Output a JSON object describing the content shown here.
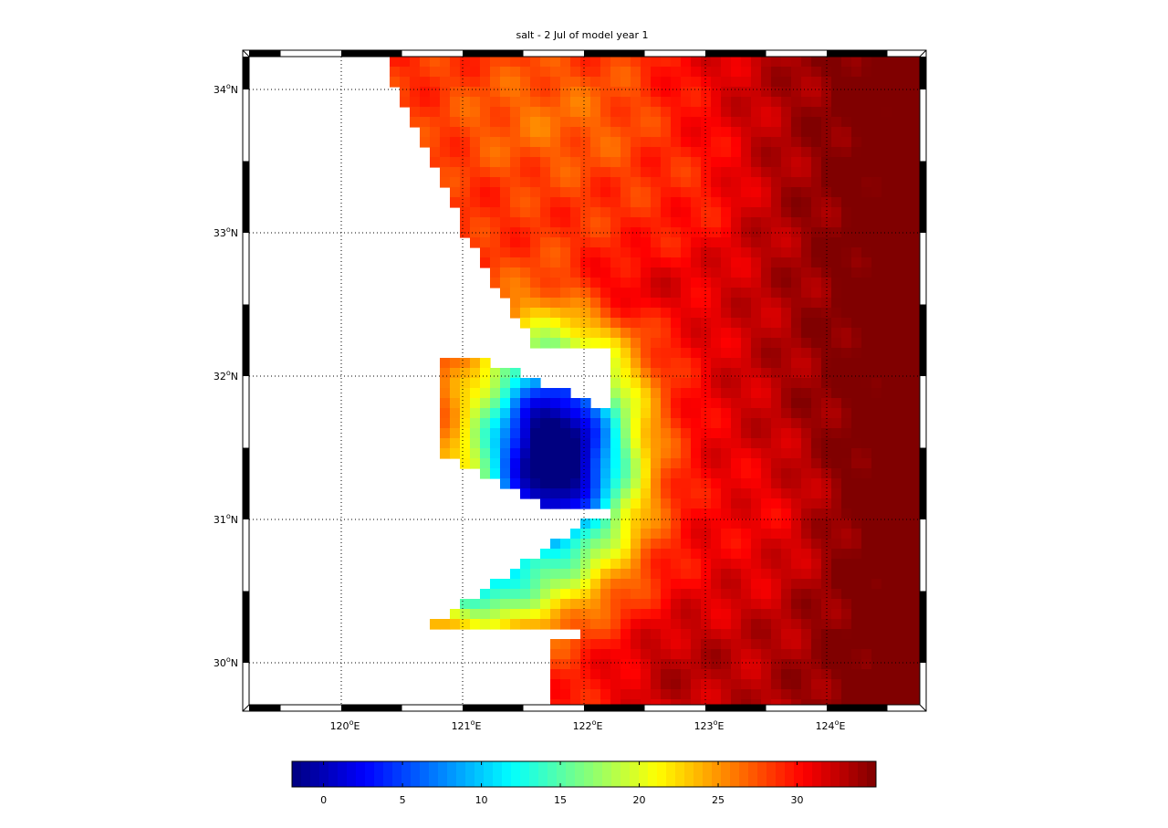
{
  "title": "salt - 2 Jul of model year 1",
  "map": {
    "variable": "salt",
    "lon_range": [
      119.28,
      124.86
    ],
    "lat_range": [
      29.68,
      34.28
    ],
    "lon_ticks": [
      {
        "value": 120,
        "label": "120°E"
      },
      {
        "value": 121,
        "label": "121°E"
      },
      {
        "value": 122,
        "label": "122°E"
      },
      {
        "value": 123,
        "label": "123°E"
      },
      {
        "value": 124,
        "label": "124°E"
      }
    ],
    "lat_ticks": [
      {
        "value": 30,
        "label": "30°N"
      },
      {
        "value": 31,
        "label": "31°N"
      },
      {
        "value": 32,
        "label": "32°N"
      },
      {
        "value": 33,
        "label": "33°N"
      },
      {
        "value": 34,
        "label": "34°N"
      }
    ],
    "gridlines": "dotted",
    "land_color": "#ffffff",
    "colormap": "jet"
  },
  "colorbar": {
    "min": -2,
    "max": 35,
    "ticks": [
      "0",
      "5",
      "10",
      "15",
      "20",
      "25",
      "30"
    ],
    "tick_values": [
      0,
      5,
      10,
      15,
      20,
      25,
      30
    ]
  }
}
